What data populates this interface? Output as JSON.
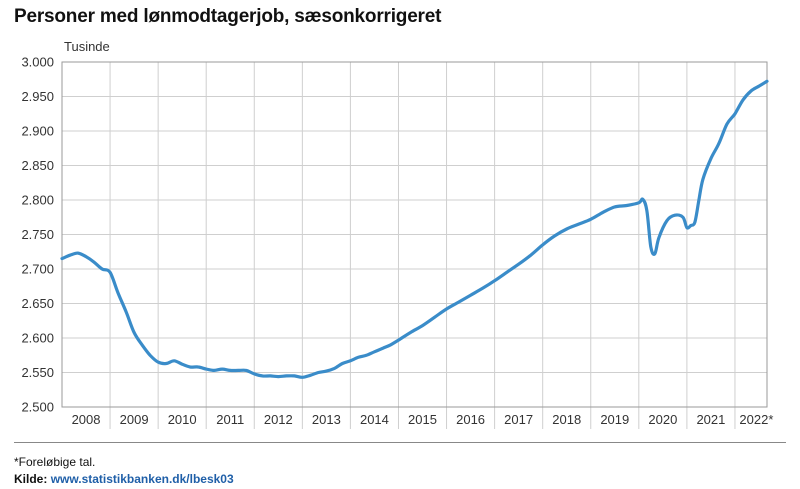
{
  "title": "Personer med lønmodtagerjob, sæsonkorrigeret",
  "footnote": "*Foreløbige tal.",
  "source": {
    "label": "Kilde:",
    "link": "www.statistikbanken.dk/lbesk03"
  },
  "chart_data": {
    "type": "line",
    "title": "Personer med lønmodtagerjob, sæsonkorrigeret",
    "ylabel": "Tusinde",
    "xlabel": "",
    "ylim": [
      2500,
      3000
    ],
    "yticks": [
      2500,
      2550,
      2600,
      2650,
      2700,
      2750,
      2800,
      2850,
      2900,
      2950,
      3000
    ],
    "ytick_labels": [
      "2.500",
      "2.550",
      "2.600",
      "2.650",
      "2.700",
      "2.750",
      "2.800",
      "2.850",
      "2.900",
      "2.950",
      "3.000"
    ],
    "xlim": [
      "2008-01",
      "2022-09"
    ],
    "categories": [
      "2008",
      "2009",
      "2010",
      "2011",
      "2012",
      "2013",
      "2014",
      "2015",
      "2016",
      "2017",
      "2018",
      "2019",
      "2020",
      "2021",
      "2022*"
    ],
    "grid": true,
    "color": "#3a8cc9",
    "series": [
      {
        "x": [
          "2008-01",
          "2008-03",
          "2008-05",
          "2008-07",
          "2008-09",
          "2008-11",
          "2009-01",
          "2009-03",
          "2009-05",
          "2009-07",
          "2009-09",
          "2009-11",
          "2010-01",
          "2010-03",
          "2010-05",
          "2010-07",
          "2010-09",
          "2010-11",
          "2011-01",
          "2011-03",
          "2011-05",
          "2011-07",
          "2011-09",
          "2011-11",
          "2012-01",
          "2012-03",
          "2012-05",
          "2012-07",
          "2012-09",
          "2012-11",
          "2013-01",
          "2013-03",
          "2013-05",
          "2013-07",
          "2013-09",
          "2013-11",
          "2014-01",
          "2014-03",
          "2014-05",
          "2014-07",
          "2014-09",
          "2014-11",
          "2015-01",
          "2015-04",
          "2015-07",
          "2015-10",
          "2016-01",
          "2016-04",
          "2016-07",
          "2016-10",
          "2017-01",
          "2017-04",
          "2017-07",
          "2017-10",
          "2018-01",
          "2018-04",
          "2018-07",
          "2018-10",
          "2019-01",
          "2019-04",
          "2019-07",
          "2019-10",
          "2020-01",
          "2020-02",
          "2020-03",
          "2020-04",
          "2020-05",
          "2020-06",
          "2020-08",
          "2020-10",
          "2020-12",
          "2021-01",
          "2021-02",
          "2021-03",
          "2021-04",
          "2021-05",
          "2021-07",
          "2021-09",
          "2021-11",
          "2022-01",
          "2022-03",
          "2022-05",
          "2022-07",
          "2022-09"
        ],
        "values": [
          2715,
          2720,
          2723,
          2718,
          2710,
          2700,
          2695,
          2665,
          2638,
          2608,
          2590,
          2575,
          2565,
          2563,
          2567,
          2562,
          2558,
          2558,
          2555,
          2553,
          2555,
          2553,
          2553,
          2553,
          2548,
          2545,
          2545,
          2544,
          2545,
          2545,
          2543,
          2546,
          2550,
          2552,
          2556,
          2563,
          2567,
          2572,
          2575,
          2580,
          2585,
          2590,
          2597,
          2608,
          2618,
          2630,
          2642,
          2652,
          2662,
          2672,
          2683,
          2695,
          2707,
          2720,
          2735,
          2748,
          2758,
          2765,
          2772,
          2782,
          2790,
          2792,
          2796,
          2801,
          2785,
          2732,
          2722,
          2745,
          2770,
          2778,
          2775,
          2760,
          2763,
          2768,
          2800,
          2830,
          2860,
          2882,
          2910,
          2925,
          2945,
          2958,
          2965,
          2972
        ]
      }
    ]
  }
}
